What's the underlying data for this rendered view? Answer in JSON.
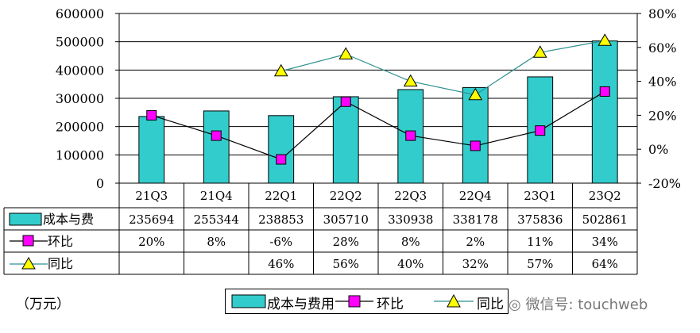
{
  "chart_data": {
    "type": "bar",
    "categories": [
      "21Q3",
      "21Q4",
      "22Q1",
      "22Q2",
      "22Q3",
      "22Q4",
      "23Q1",
      "23Q2"
    ],
    "ylim": [
      0,
      600000
    ],
    "y_ticks": [
      "600000",
      "500000",
      "400000",
      "300000",
      "200000",
      "100000",
      "0"
    ],
    "y2lim": [
      -20,
      80
    ],
    "y2_ticks": [
      "80%",
      "60%",
      "40%",
      "20%",
      "0%",
      "-20%"
    ],
    "grid": true,
    "series": [
      {
        "name": "成本与费用",
        "type": "bar",
        "color": "#33cccc",
        "values": [
          235694,
          255344,
          238853,
          305710,
          330938,
          338178,
          375836,
          502861
        ]
      },
      {
        "name": "环比",
        "type": "line",
        "axis": "right",
        "marker": "square",
        "color": "#ff00ff",
        "values": [
          20,
          8,
          -6,
          28,
          8,
          2,
          11,
          34
        ]
      },
      {
        "name": "同比",
        "type": "line",
        "axis": "right",
        "marker": "triangle",
        "color": "#ffff00",
        "values": [
          null,
          null,
          46,
          56,
          40,
          32,
          57,
          64
        ]
      }
    ],
    "table": {
      "row_labels": [
        "成本与费",
        "环比",
        "同比"
      ],
      "rows": [
        [
          "235694",
          "255344",
          "238853",
          "305710",
          "330938",
          "338178",
          "375836",
          "502861"
        ],
        [
          "20%",
          "8%",
          "-6%",
          "28%",
          "8%",
          "2%",
          "11%",
          "34%"
        ],
        [
          "",
          "",
          "46%",
          "56%",
          "40%",
          "32%",
          "57%",
          "64%"
        ]
      ]
    }
  },
  "unit_label": "（万元）",
  "legend": {
    "bar": "成本与费用",
    "mom": "环比",
    "yoy": "同比"
  },
  "watermark": "微信号: touchweb"
}
